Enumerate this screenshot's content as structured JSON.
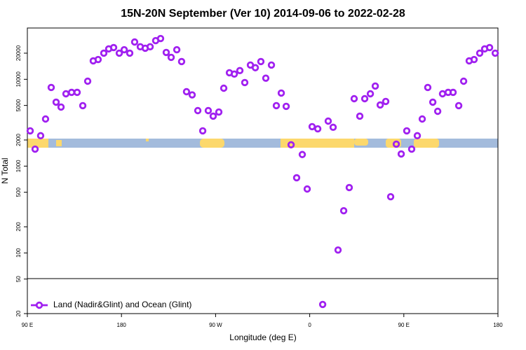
{
  "chart_data": {
    "type": "scatter",
    "title": "15N-20N September (Ver 10)   2014-09-06 to 2022-02-28",
    "x_label": "Longitude (deg E)",
    "y_label": "N Total",
    "log_y": true,
    "legend_position": "bottom-left",
    "xlim": [
      90,
      540
    ],
    "ylim": [
      20,
      39000
    ],
    "xticks": [
      {
        "value": 90,
        "label": "90 E"
      },
      180,
      {
        "value": 270,
        "label": "90 W"
      },
      {
        "value": 360,
        "label": "0"
      },
      {
        "value": 450,
        "label": "90 E"
      },
      {
        "value": 540,
        "label": "180"
      }
    ],
    "yticks": [
      20,
      50,
      100,
      200,
      500,
      1000,
      2000,
      5000,
      10000,
      20000
    ],
    "series": [
      {
        "name": "Land (Nadir&Glint) and Ocean (Glint)",
        "color": "#a020f0",
        "x": [
          92.7,
          97.4,
          102.7,
          107.4,
          112.8,
          117.5,
          122.2,
          126.9,
          132.3,
          137.6,
          143,
          147.7,
          153,
          157.7,
          163.1,
          167.8,
          172.5,
          177.9,
          182.6,
          187.9,
          192.6,
          198,
          202.7,
          207.4,
          212.7,
          217.4,
          222.8,
          227.5,
          232.9,
          237.5,
          242.2,
          247.6,
          253,
          257.7,
          263,
          267.7,
          273.1,
          277.8,
          283.2,
          287.9,
          293.2,
          297.9,
          303.3,
          308,
          313.3,
          318,
          323.4,
          328.1,
          332.8,
          337.5,
          342.2,
          347.5,
          352.9,
          357.6,
          362.3,
          367.7,
          372.4,
          377.7,
          382.4,
          387.1,
          392.5,
          397.8,
          402.5,
          407.9,
          412.6,
          418,
          422.7,
          427.4,
          432.7,
          437.4,
          442.8,
          447.5,
          452.8,
          457.5,
          462.9,
          467.6,
          472.9,
          477.7,
          482.4,
          487,
          492.4,
          497.1,
          502.5,
          507.2,
          512.5,
          517.2,
          522.6,
          527.3,
          532,
          537.4
        ],
        "values": [
          2550,
          1570,
          2240,
          3490,
          8050,
          5450,
          4790,
          6810,
          7070,
          7070,
          4970,
          9510,
          16300,
          16900,
          20000,
          22400,
          23200,
          20000,
          21900,
          20000,
          26900,
          23700,
          22800,
          23700,
          27900,
          29500,
          20400,
          17900,
          21900,
          16000,
          7200,
          6620,
          4360,
          2550,
          4360,
          3760,
          4200,
          7900,
          11900,
          11500,
          12600,
          9170,
          14600,
          13600,
          16000,
          10300,
          14600,
          4970,
          6940,
          4880,
          1760,
          734,
          1360,
          545,
          2850,
          2690,
          25.5,
          3300,
          2800,
          108,
          306,
          566,
          5980,
          3760,
          5980,
          6810,
          8360,
          5060,
          5560,
          444,
          1790,
          1380,
          2550,
          1570,
          2240,
          3490,
          8050,
          5450,
          4280,
          6810,
          7070,
          7070,
          4970,
          9510,
          16300,
          16900,
          20000,
          22400,
          23200,
          20000
        ]
      }
    ]
  }
}
